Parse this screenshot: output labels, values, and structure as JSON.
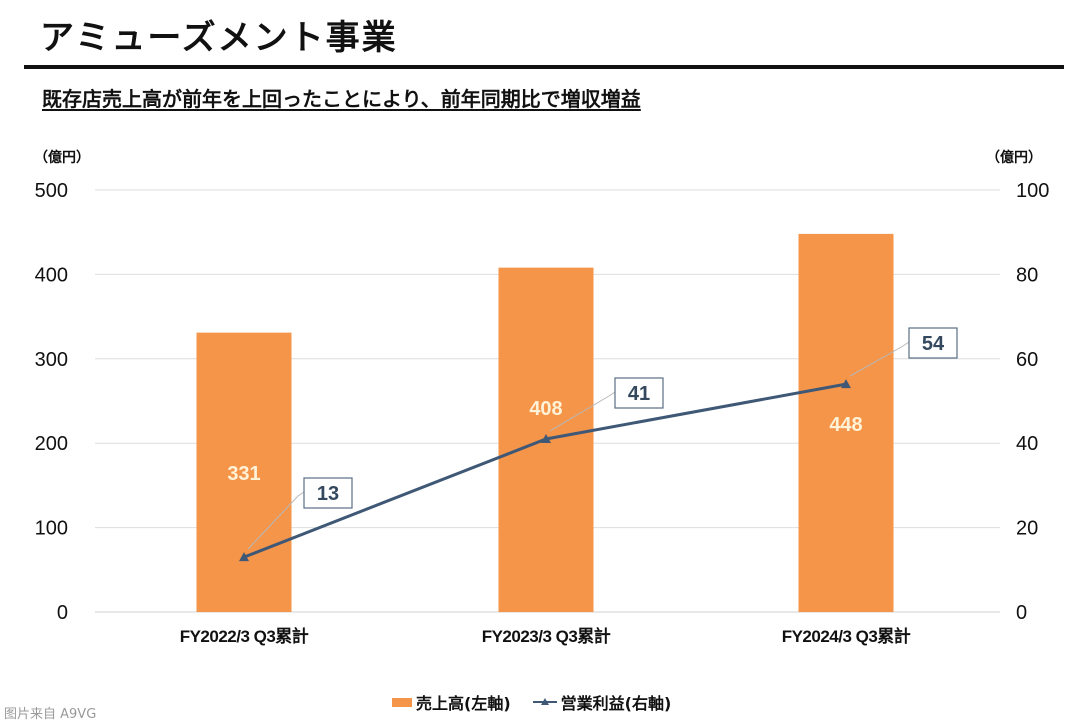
{
  "page": {
    "title": "アミューズメント事業",
    "subtitle": "既存店売上高が前年を上回ったことにより、前年同期比で増収増益",
    "source_note": "图片来自 A9VG"
  },
  "chart_data": {
    "type": "bar",
    "title": "アミューズメント事業",
    "subtitle": "既存店売上高が前年を上回ったことにより、前年同期比で増収増益",
    "categories": [
      "FY2022/3 Q3累計",
      "FY2023/3 Q3累計",
      "FY2024/3 Q3累計"
    ],
    "series": [
      {
        "name": "売上高(左軸)",
        "type": "bar",
        "axis": "left",
        "values": [
          331,
          408,
          448
        ],
        "color": "#f4954a"
      },
      {
        "name": "営業利益(右軸)",
        "type": "line",
        "axis": "right",
        "values": [
          13,
          41,
          54
        ],
        "color": "#3f5876",
        "marker": "triangle"
      }
    ],
    "left_axis": {
      "unit_label": "（億円）",
      "ylim": [
        0,
        500
      ],
      "ticks": [
        0,
        100,
        200,
        300,
        400,
        500
      ],
      "tick_labels": [
        "0",
        "100",
        "200",
        "300",
        "400",
        "500"
      ]
    },
    "right_axis": {
      "unit_label": "（億円）",
      "ylim": [
        0,
        100
      ],
      "ticks": [
        0,
        20,
        40,
        60,
        80,
        100
      ],
      "tick_labels": [
        "0",
        "20",
        "40",
        "60",
        "80",
        "100"
      ]
    },
    "grid": true,
    "legend": {
      "placement": "bottom",
      "entries": [
        "売上高(左軸)",
        "営業利益(右軸)"
      ]
    },
    "xlabel": "",
    "ylabel": ""
  }
}
